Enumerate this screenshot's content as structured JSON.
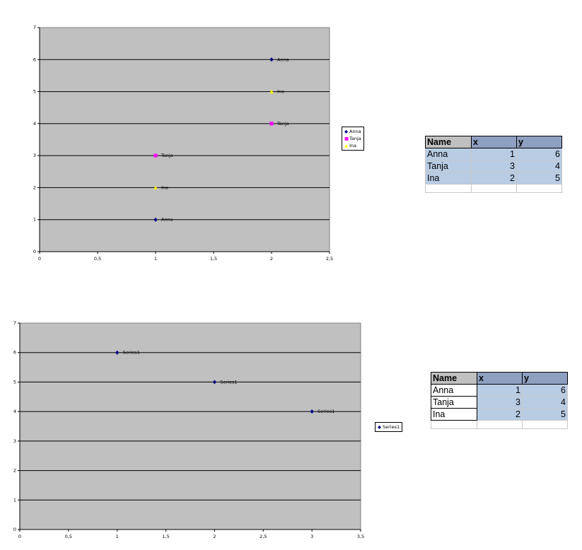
{
  "chart_data": [
    {
      "type": "scatter",
      "xlim": [
        0,
        2.5
      ],
      "ylim": [
        0,
        7
      ],
      "x_ticks": [
        "0",
        "0,5",
        "1",
        "1,5",
        "2",
        "2,5"
      ],
      "y_ticks": [
        "0",
        "1",
        "2",
        "3",
        "4",
        "5",
        "6",
        "7"
      ],
      "grid": true,
      "plot_background": "#c0c0c0",
      "legend_position": "right",
      "series": [
        {
          "name": "Anna",
          "color": "#000080",
          "marker": "diamond",
          "points": [
            {
              "x": 1,
              "y": 1,
              "label": "Anna"
            },
            {
              "x": 2,
              "y": 6,
              "label": "Anna"
            }
          ]
        },
        {
          "name": "Tanja",
          "color": "#ff00ff",
          "marker": "square",
          "points": [
            {
              "x": 1,
              "y": 3,
              "label": "Tanja"
            },
            {
              "x": 2,
              "y": 4,
              "label": "Tanja"
            }
          ]
        },
        {
          "name": "Ina",
          "color": "#ffff00",
          "marker": "triangle",
          "points": [
            {
              "x": 1,
              "y": 2,
              "label": "Ina"
            },
            {
              "x": 2,
              "y": 5,
              "label": "Ina"
            }
          ]
        }
      ]
    },
    {
      "type": "scatter",
      "xlim": [
        0,
        3.5
      ],
      "ylim": [
        0,
        7
      ],
      "x_ticks": [
        "0",
        "0,5",
        "1",
        "1,5",
        "2",
        "2,5",
        "3",
        "3,5"
      ],
      "y_ticks": [
        "0",
        "1",
        "2",
        "3",
        "4",
        "5",
        "6",
        "7"
      ],
      "grid": true,
      "plot_background": "#c0c0c0",
      "legend_position": "right",
      "series": [
        {
          "name": "Series1",
          "color": "#000080",
          "marker": "diamond",
          "points": [
            {
              "x": 1,
              "y": 6,
              "label": "Series1"
            },
            {
              "x": 2,
              "y": 5,
              "label": "Series1"
            },
            {
              "x": 3,
              "y": 4,
              "label": "Series1"
            }
          ]
        }
      ]
    }
  ],
  "tables": [
    {
      "headers": [
        "Name",
        "x",
        "y"
      ],
      "rows": [
        [
          "Anna",
          "1",
          "6"
        ],
        [
          "Tanja",
          "3",
          "4"
        ],
        [
          "Ina",
          "2",
          "5"
        ]
      ]
    },
    {
      "headers": [
        "Name",
        "x",
        "y"
      ],
      "rows": [
        [
          "Anna",
          "1",
          "6"
        ],
        [
          "Tanja",
          "3",
          "4"
        ],
        [
          "Ina",
          "2",
          "5"
        ]
      ]
    }
  ],
  "colors": {
    "header_fill": "#8ea0c0",
    "cell_fill": "#b8cce4",
    "grid_line": "#c8c8c8"
  }
}
